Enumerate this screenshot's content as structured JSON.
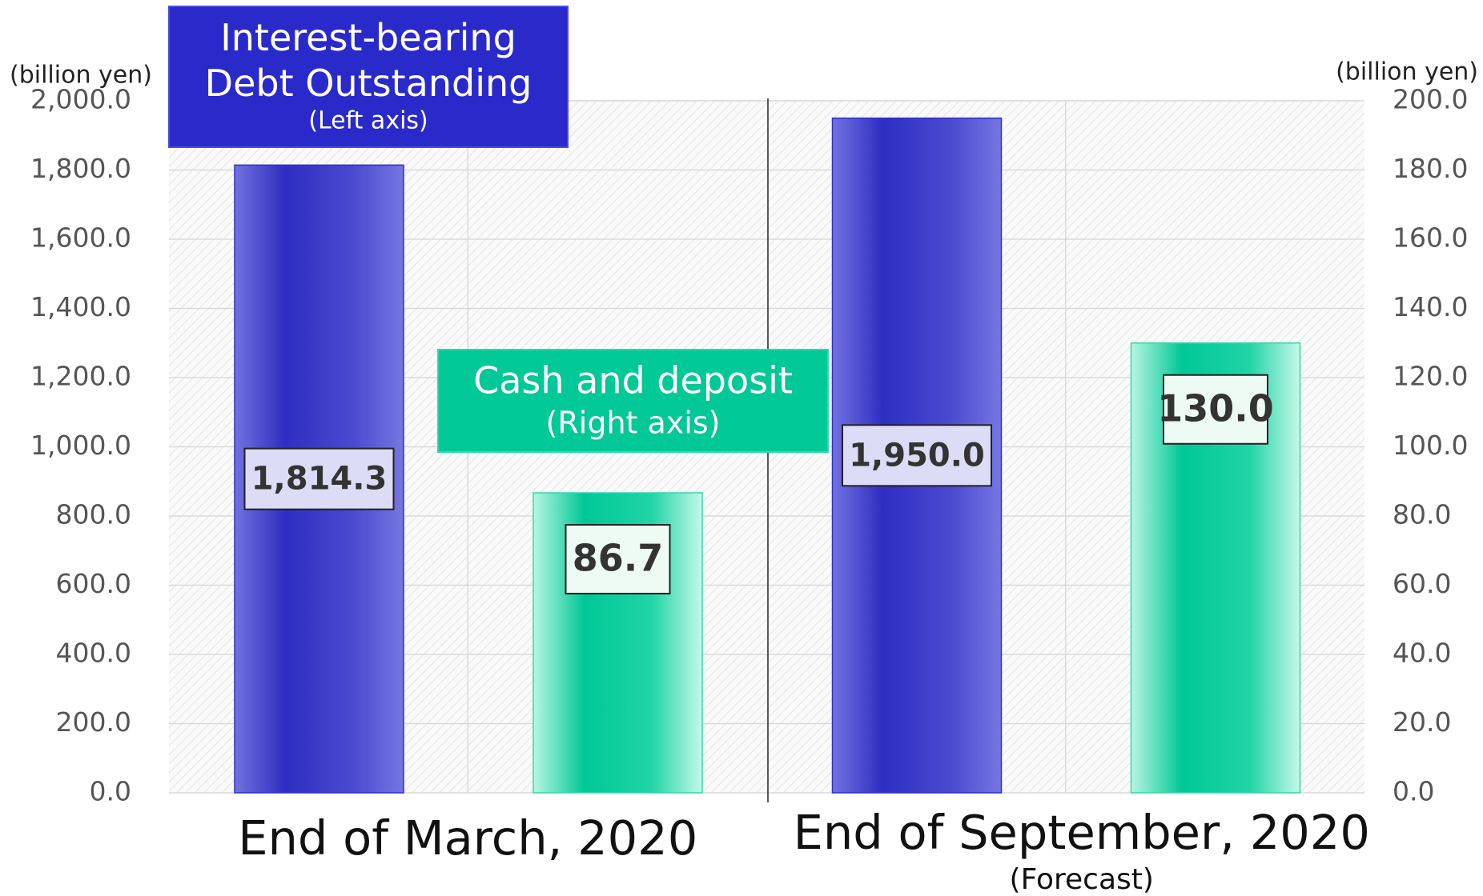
{
  "chart_data": {
    "type": "bar",
    "categories": [
      "End of March, 2020",
      "End of September, 2020"
    ],
    "category_notes": [
      null,
      "(Forecast)"
    ],
    "series": [
      {
        "name": "Interest-bearing Debt Outstanding",
        "note": "(Left axis)",
        "color": "#2e2ec2",
        "values": [
          1814.3,
          1950.0
        ],
        "value_labels": [
          "1,814.3",
          "1,950.0"
        ]
      },
      {
        "name": "Cash and deposit",
        "note": "(Right axis)",
        "color": "#00c896",
        "axis": "y2",
        "values": [
          86.7,
          130.0
        ],
        "value_labels": [
          "86.7",
          "130.0"
        ]
      }
    ],
    "ylabel": "(billion yen)",
    "y2label": "(billion yen)",
    "ylim": [
      0,
      2000
    ],
    "yticks": [
      {
        "value": 0,
        "label": "0.0"
      },
      {
        "value": 200,
        "label": "200.0"
      },
      {
        "value": 400,
        "label": "400.0"
      },
      {
        "value": 600,
        "label": "600.0"
      },
      {
        "value": 800,
        "label": "800.0"
      },
      {
        "value": 1000,
        "label": "1,000.0"
      },
      {
        "value": 1200,
        "label": "1,200.0"
      },
      {
        "value": 1400,
        "label": "1,400.0"
      },
      {
        "value": 1600,
        "label": "1,600.0"
      },
      {
        "value": 1800,
        "label": "1,800.0"
      },
      {
        "value": 2000,
        "label": "2,000.0"
      }
    ],
    "y2lim": [
      0,
      200
    ],
    "y2ticks": [
      {
        "value": 0,
        "label": "0.0"
      },
      {
        "value": 20,
        "label": "20.0"
      },
      {
        "value": 40,
        "label": "40.0"
      },
      {
        "value": 60,
        "label": "60.0"
      },
      {
        "value": 80,
        "label": "80.0"
      },
      {
        "value": 100,
        "label": "100.0"
      },
      {
        "value": 120,
        "label": "120.0"
      },
      {
        "value": 140,
        "label": "140.0"
      },
      {
        "value": 160,
        "label": "160.0"
      },
      {
        "value": 180,
        "label": "180.0"
      },
      {
        "value": 200,
        "label": "200.0"
      }
    ],
    "grid": true
  }
}
